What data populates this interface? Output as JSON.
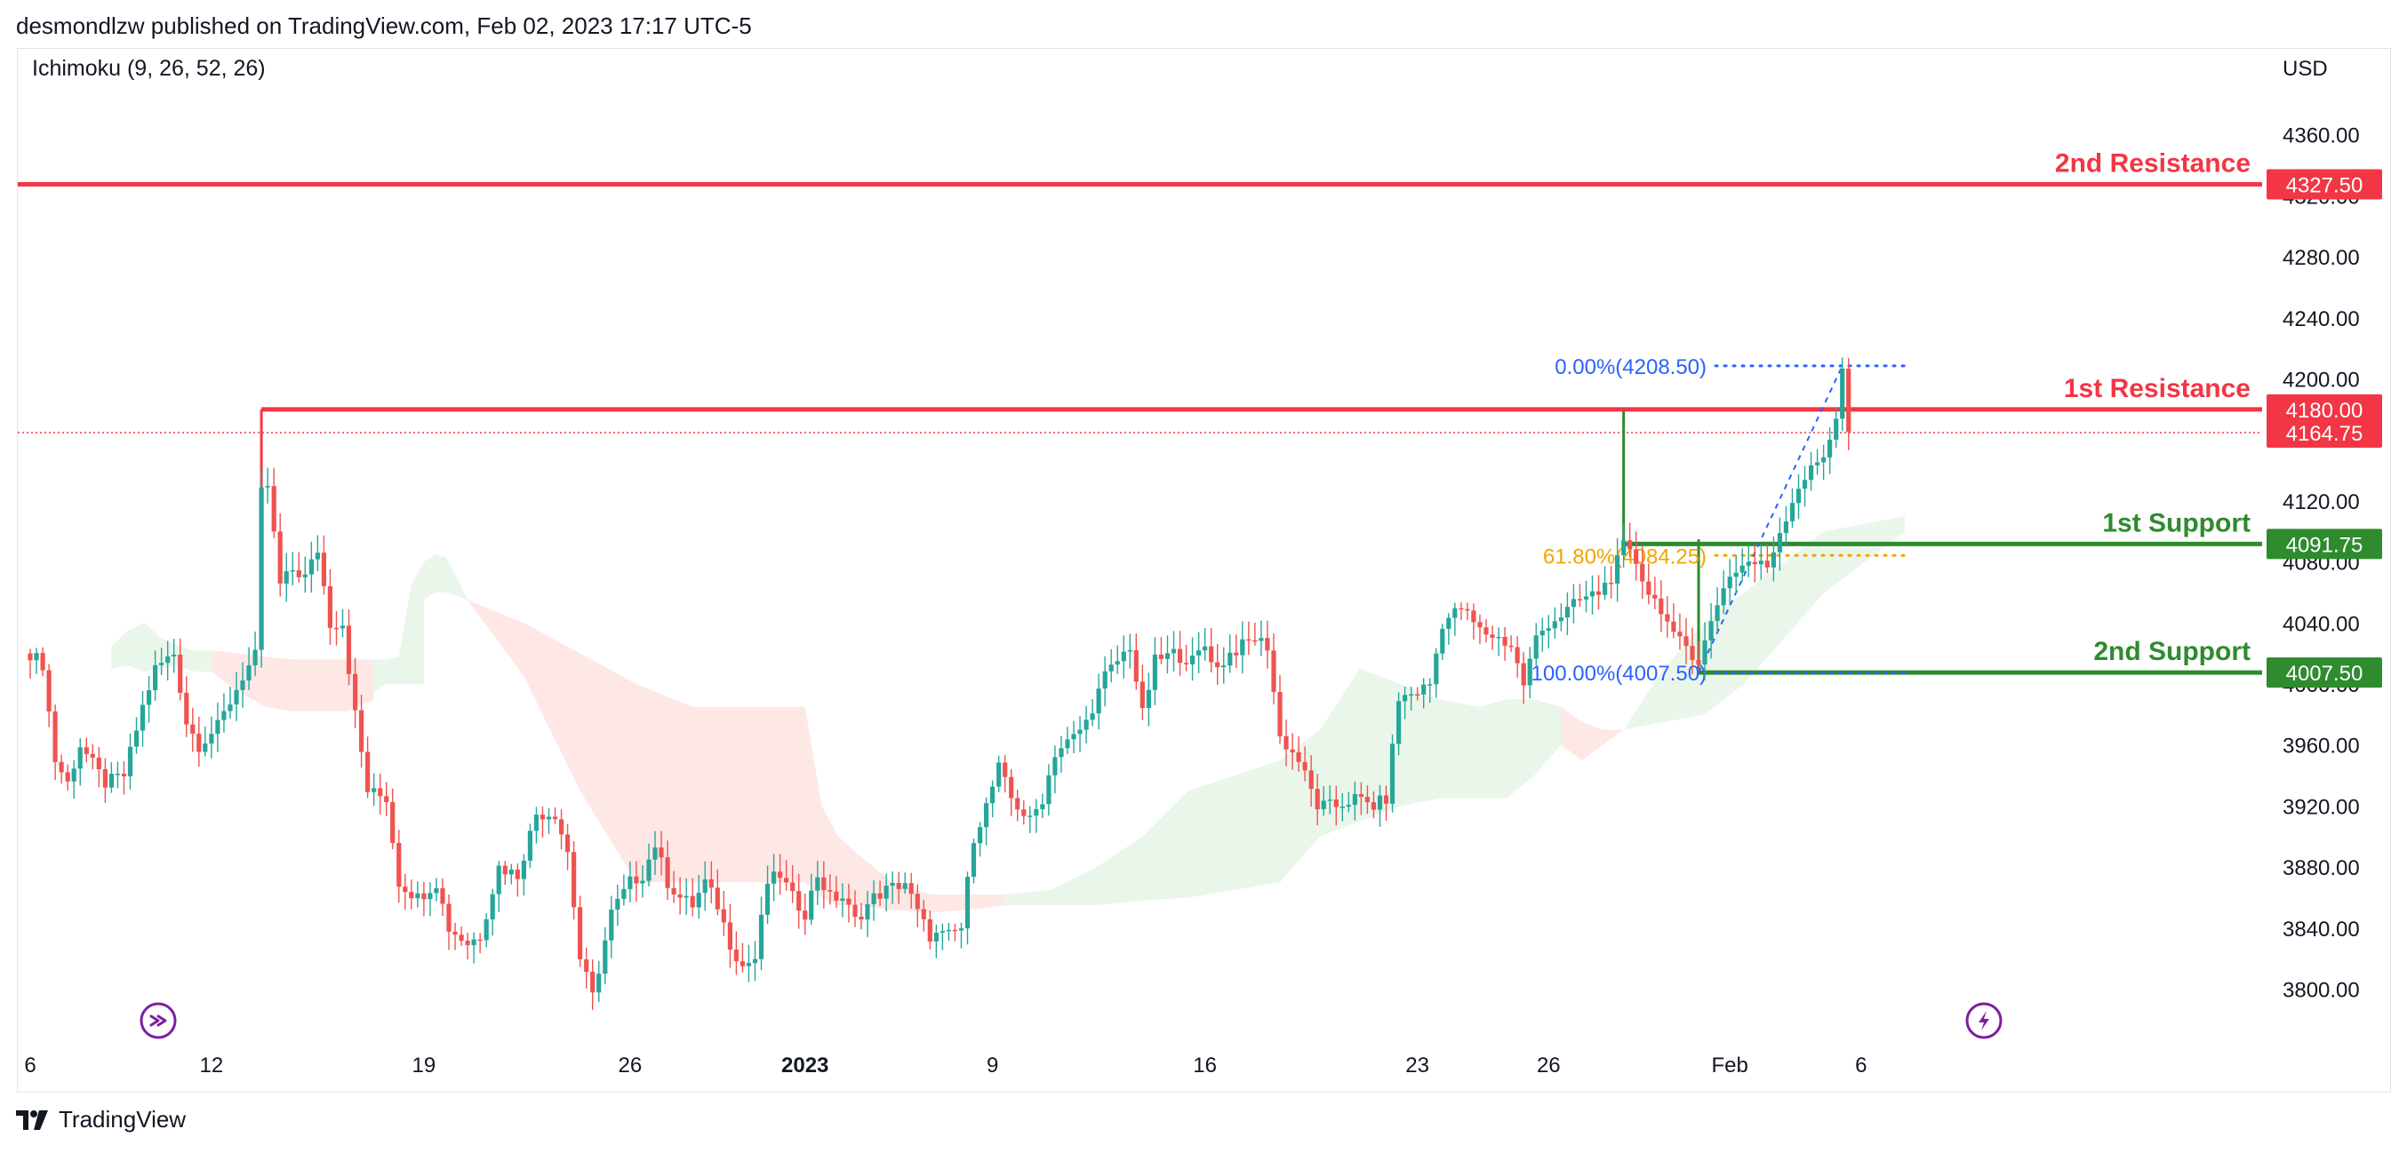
{
  "header": {
    "text": "desmondlzw published on TradingView.com, Feb 02, 2023 17:17 UTC-5"
  },
  "indicator": {
    "label": "Ichimoku (9, 26, 52, 26)"
  },
  "currency": "USD",
  "footer": {
    "brand": "TradingView",
    "logo_icon": "tradingview-logo-icon"
  },
  "icons": {
    "left": "replay-arrow-icon",
    "right": "lightning-icon"
  },
  "colors": {
    "up": "#26a69a",
    "down": "#ef5350",
    "resistance": "#f23645",
    "support": "#2e8b2e",
    "fib_blue": "#2962ff",
    "fib_orange": "#f0a500",
    "cloud_green": "#e6f4e6",
    "cloud_red": "#fde4e2",
    "accent_purple": "#7b1fa2"
  },
  "chart_data": {
    "type": "candlestick",
    "ylim": [
      3760,
      4400
    ],
    "y_ticks": [
      3800,
      3840,
      3880,
      3920,
      3960,
      4000,
      4040,
      4080,
      4120,
      4160,
      4200,
      4240,
      4280,
      4320,
      4360
    ],
    "y_tick_labels": [
      "3800.00",
      "3840.00",
      "3880.00",
      "3920.00",
      "3960.00",
      "4000.00",
      "4040.00",
      "4080.00",
      "4120.00",
      "4160.00",
      "4200.00",
      "4240.00",
      "4280.00",
      "4320.00",
      "4360.00"
    ],
    "x_ticks": [
      {
        "label": "6",
        "bar": 0
      },
      {
        "label": "12",
        "bar": 29
      },
      {
        "label": "19",
        "bar": 63
      },
      {
        "label": "26",
        "bar": 96
      },
      {
        "label": "2023",
        "bar": 124,
        "bold": true
      },
      {
        "label": "9",
        "bar": 154
      },
      {
        "label": "16",
        "bar": 188
      },
      {
        "label": "23",
        "bar": 222
      },
      {
        "label": "26",
        "bar": 243
      },
      {
        "label": "Feb",
        "bar": 272
      },
      {
        "label": "6",
        "bar": 293
      }
    ],
    "bar_count": 315,
    "key_points": [
      [
        0,
        4020
      ],
      [
        2,
        4013
      ],
      [
        4,
        3950
      ],
      [
        6,
        3935
      ],
      [
        8,
        3960
      ],
      [
        12,
        3935
      ],
      [
        15,
        3940
      ],
      [
        18,
        3985
      ],
      [
        20,
        4010
      ],
      [
        23,
        4020
      ],
      [
        25,
        3975
      ],
      [
        27,
        3960
      ],
      [
        30,
        3972
      ],
      [
        34,
        4005
      ],
      [
        36,
        4018
      ],
      [
        37,
        4125
      ],
      [
        38,
        4130
      ],
      [
        40,
        4065
      ],
      [
        42,
        4075
      ],
      [
        44,
        4070
      ],
      [
        46,
        4088
      ],
      [
        48,
        4040
      ],
      [
        50,
        4040
      ],
      [
        52,
        3980
      ],
      [
        54,
        3930
      ],
      [
        57,
        3925
      ],
      [
        59,
        3870
      ],
      [
        62,
        3860
      ],
      [
        65,
        3870
      ],
      [
        67,
        3840
      ],
      [
        70,
        3830
      ],
      [
        72,
        3835
      ],
      [
        75,
        3880
      ],
      [
        78,
        3875
      ],
      [
        81,
        3915
      ],
      [
        84,
        3915
      ],
      [
        86,
        3890
      ],
      [
        88,
        3820
      ],
      [
        90,
        3795
      ],
      [
        93,
        3850
      ],
      [
        96,
        3870
      ],
      [
        98,
        3875
      ],
      [
        100,
        3895
      ],
      [
        102,
        3870
      ],
      [
        104,
        3860
      ],
      [
        106,
        3855
      ],
      [
        108,
        3870
      ],
      [
        110,
        3855
      ],
      [
        112,
        3830
      ],
      [
        114,
        3815
      ],
      [
        116,
        3820
      ],
      [
        118,
        3870
      ],
      [
        120,
        3875
      ],
      [
        122,
        3860
      ],
      [
        124,
        3850
      ],
      [
        126,
        3875
      ],
      [
        128,
        3860
      ],
      [
        130,
        3860
      ],
      [
        132,
        3845
      ],
      [
        135,
        3860
      ],
      [
        137,
        3865
      ],
      [
        140,
        3870
      ],
      [
        142,
        3850
      ],
      [
        144,
        3835
      ],
      [
        147,
        3835
      ],
      [
        149,
        3840
      ],
      [
        151,
        3900
      ],
      [
        153,
        3920
      ],
      [
        155,
        3945
      ],
      [
        157,
        3925
      ],
      [
        160,
        3910
      ],
      [
        162,
        3925
      ],
      [
        164,
        3955
      ],
      [
        167,
        3965
      ],
      [
        169,
        3975
      ],
      [
        172,
        4005
      ],
      [
        174,
        4015
      ],
      [
        176,
        4025
      ],
      [
        178,
        3980
      ],
      [
        180,
        4015
      ],
      [
        183,
        4020
      ],
      [
        186,
        4015
      ],
      [
        188,
        4025
      ],
      [
        190,
        4010
      ],
      [
        192,
        4020
      ],
      [
        194,
        4025
      ],
      [
        196,
        4030
      ],
      [
        198,
        4025
      ],
      [
        200,
        3965
      ],
      [
        203,
        3950
      ],
      [
        206,
        3920
      ],
      [
        209,
        3920
      ],
      [
        212,
        3925
      ],
      [
        215,
        3920
      ],
      [
        217,
        3925
      ],
      [
        219,
        3990
      ],
      [
        222,
        3995
      ],
      [
        224,
        4000
      ],
      [
        226,
        4040
      ],
      [
        229,
        4050
      ],
      [
        232,
        4035
      ],
      [
        235,
        4030
      ],
      [
        237,
        4025
      ],
      [
        239,
        4000
      ],
      [
        241,
        4030
      ],
      [
        243,
        4040
      ],
      [
        245,
        4045
      ],
      [
        248,
        4055
      ],
      [
        251,
        4060
      ],
      [
        253,
        4070
      ],
      [
        255,
        4090
      ],
      [
        257,
        4080
      ],
      [
        259,
        4060
      ],
      [
        261,
        4050
      ],
      [
        263,
        4030
      ],
      [
        265,
        4025
      ],
      [
        267,
        4015
      ],
      [
        269,
        4040
      ],
      [
        271,
        4065
      ],
      [
        273,
        4075
      ],
      [
        275,
        4080
      ],
      [
        278,
        4077
      ],
      [
        280,
        4100
      ],
      [
        283,
        4130
      ],
      [
        285,
        4140
      ],
      [
        287,
        4150
      ],
      [
        289,
        4175
      ],
      [
        290,
        4205
      ],
      [
        291,
        4165
      ]
    ],
    "cloud": [
      {
        "from": 13,
        "to": 29,
        "top": [
          4025,
          4035,
          4040,
          4030,
          4025,
          4022,
          4022
        ],
        "bottom": [
          4010,
          4012,
          4008,
          4010,
          4012,
          4008,
          4008
        ],
        "color": "green"
      },
      {
        "from": 29,
        "to": 55,
        "top": [
          4022,
          4020,
          4018,
          4016,
          4016,
          4016,
          4016
        ],
        "bottom": [
          4008,
          3995,
          3985,
          3982,
          3982,
          3982,
          3990
        ],
        "color": "red"
      },
      {
        "from": 55,
        "to": 63,
        "top": [
          4016,
          4016,
          4018,
          4065,
          4080
        ],
        "bottom": [
          3995,
          4000,
          4000,
          4000,
          4000
        ],
        "color": "green"
      },
      {
        "from": 63,
        "to": 70,
        "top": [
          4080,
          4085,
          4083,
          4070,
          4055
        ],
        "bottom": [
          4055,
          4060,
          4060,
          4058,
          4055
        ],
        "color": "green"
      },
      {
        "from": 70,
        "to": 124,
        "top": [
          4055,
          4040,
          4020,
          4000,
          3985,
          3985,
          3985
        ],
        "bottom": [
          4055,
          4005,
          3930,
          3870,
          3870,
          3870,
          3870
        ],
        "color": "red"
      },
      {
        "from": 124,
        "to": 132,
        "top": [
          3985,
          3920,
          3900,
          3890
        ],
        "bottom": [
          3870,
          3860,
          3855,
          3855
        ],
        "color": "red"
      },
      {
        "from": 132,
        "to": 156,
        "top": [
          3890,
          3870,
          3862,
          3862,
          3862
        ],
        "bottom": [
          3855,
          3852,
          3850,
          3852,
          3855
        ],
        "color": "red"
      },
      {
        "from": 156,
        "to": 200,
        "top": [
          3862,
          3865,
          3880,
          3900,
          3930,
          3940,
          3950
        ],
        "bottom": [
          3855,
          3855,
          3855,
          3858,
          3860,
          3865,
          3870
        ],
        "color": "green"
      },
      {
        "from": 200,
        "to": 232,
        "top": [
          3950,
          3970,
          4010,
          4000,
          3990,
          3985
        ],
        "bottom": [
          3870,
          3900,
          3910,
          3920,
          3925,
          3925
        ],
        "color": "green"
      },
      {
        "from": 232,
        "to": 245,
        "top": [
          3985,
          3990,
          3990,
          3985
        ],
        "bottom": [
          3925,
          3925,
          3940,
          3960
        ],
        "color": "green"
      },
      {
        "from": 245,
        "to": 255,
        "top": [
          3985,
          3975,
          3970,
          3970
        ],
        "bottom": [
          3960,
          3950,
          3960,
          3970
        ],
        "color": "red"
      },
      {
        "from": 255,
        "to": 300,
        "top": [
          3970,
          4010,
          4040,
          4060,
          4080,
          4100,
          4105,
          4110
        ],
        "bottom": [
          3970,
          3975,
          3980,
          4000,
          4030,
          4060,
          4080,
          4100
        ],
        "color": "green"
      }
    ],
    "levels": [
      {
        "name": "2nd Resistance",
        "price": 4327.5,
        "price_label": "4327.50",
        "kind": "resistance",
        "from_bar": -1
      },
      {
        "name": "1st Resistance",
        "price": 4180.0,
        "price_label": "4180.00",
        "kind": "resistance",
        "from_bar": 37
      },
      {
        "name": "1st Support",
        "price": 4091.75,
        "price_label": "4091.75",
        "kind": "support",
        "from_bar": 255
      },
      {
        "name": "2nd Support",
        "price": 4007.5,
        "price_label": "4007.50",
        "kind": "support",
        "from_bar": 267
      }
    ],
    "last_price": {
      "price": 4164.75,
      "label": "4164.75"
    },
    "fibonacci": [
      {
        "label": "0.00%(4208.50)",
        "price": 4208.5,
        "color": "blue"
      },
      {
        "label": "61.80%(4084.25)",
        "price": 4084.25,
        "color": "orange"
      },
      {
        "label": "100.00%(4007.50)",
        "price": 4007.5,
        "color": "blue"
      }
    ],
    "fib_text_pos": {
      "bar_end": 268,
      "line_end": 300
    }
  }
}
